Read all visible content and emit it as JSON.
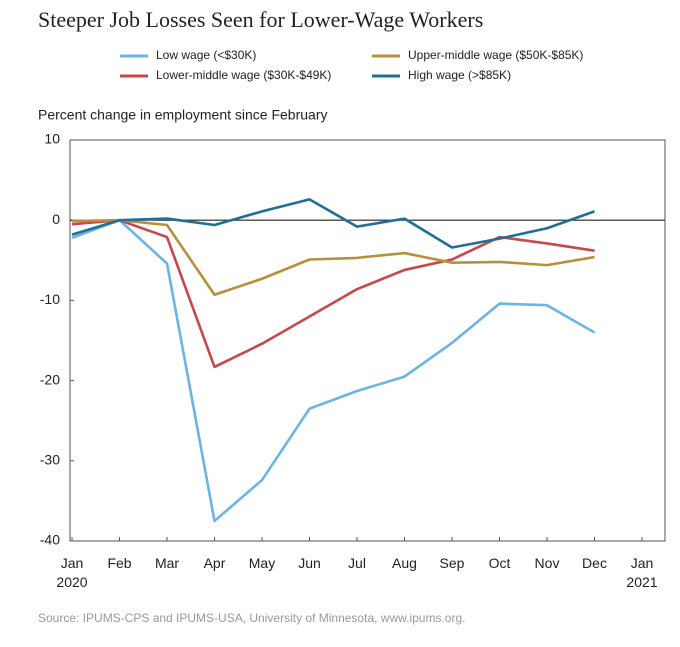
{
  "chart_data": {
    "type": "line",
    "title": "Steeper Job Losses Seen for Lower-Wage Workers",
    "y_axis_label": "Percent change in employment since February",
    "source": "Source: IPUMS-CPS and IPUMS-USA, University of Minnesota, www.ipums.org.",
    "categories": [
      "Jan\n2020",
      "Feb",
      "Mar",
      "Apr",
      "May",
      "Jun",
      "Jul",
      "Aug",
      "Sep",
      "Oct",
      "Nov",
      "Dec",
      "Jan\n2021"
    ],
    "series": [
      {
        "name": "Low wage (<$30K)",
        "color": "#6cb4e4",
        "values": [
          -2.2,
          0,
          -5.4,
          -37.5,
          -32.4,
          -23.5,
          -21.3,
          -19.5,
          -15.3,
          -10.4,
          -10.6,
          -14.0,
          null
        ]
      },
      {
        "name": "Lower-middle wage ($30K-$49K)",
        "color": "#c9474b",
        "values": [
          -0.5,
          0,
          -2.1,
          -18.3,
          -15.4,
          -12.0,
          -8.6,
          -6.2,
          -4.9,
          -2.1,
          -2.9,
          -3.8,
          null
        ]
      },
      {
        "name": "Upper-middle wage ($50K-$85K)",
        "color": "#b8903a",
        "values": [
          -0.1,
          0,
          -0.6,
          -9.3,
          -7.3,
          -4.9,
          -4.7,
          -4.1,
          -5.3,
          -5.2,
          -5.6,
          -4.6,
          null
        ]
      },
      {
        "name": "High wage (>$85K)",
        "color": "#1f6f96",
        "values": [
          -1.8,
          0,
          0.2,
          -0.6,
          1.1,
          2.6,
          -0.8,
          0.2,
          -3.4,
          -2.3,
          -1.0,
          1.1,
          null
        ]
      }
    ],
    "ylim": [
      -40,
      10
    ],
    "yticks": [
      -40,
      -30,
      -20,
      -10,
      0,
      10
    ],
    "legend": "top",
    "zero_line": true,
    "grid": false
  }
}
